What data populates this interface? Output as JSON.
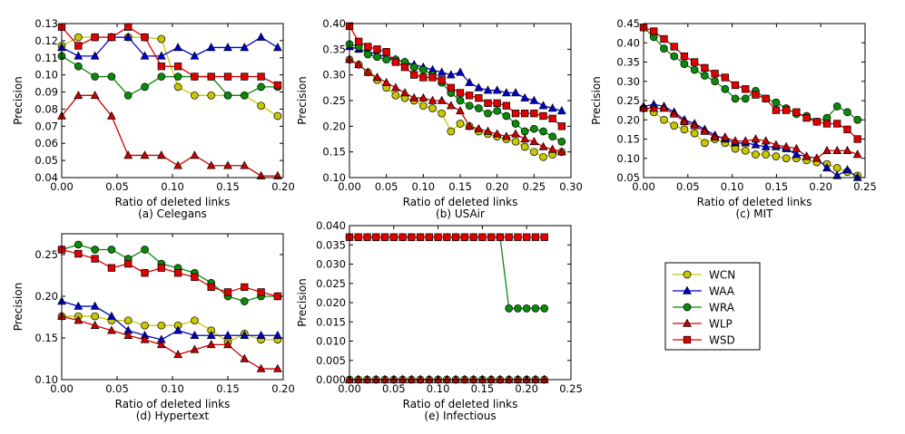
{
  "figure": {
    "legend_entries": [
      {
        "name": "WCN",
        "color": "#c8c800",
        "marker": "circle"
      },
      {
        "name": "WAA",
        "color": "#0000cc",
        "marker": "triangle"
      },
      {
        "name": "WRA",
        "color": "#0a8a0a",
        "marker": "circle"
      },
      {
        "name": "WLP",
        "color": "#cc0000",
        "marker": "triangle"
      },
      {
        "name": "WSD",
        "color": "#e00000",
        "marker": "square"
      }
    ]
  },
  "chart_data": [
    {
      "type": "line",
      "caption": "(a) Celegans",
      "xlabel": "Ratio of deleted links",
      "ylabel": "Precision",
      "xlim": [
        0,
        0.2
      ],
      "ylim": [
        0.04,
        0.13
      ],
      "xticks": [
        "0.00",
        "0.05",
        "0.10",
        "0.15",
        "0.20"
      ],
      "yticks": [
        "0.04",
        "0.05",
        "0.06",
        "0.07",
        "0.08",
        "0.09",
        "0.10",
        "0.11",
        "0.12",
        "0.13"
      ],
      "x": [
        0.0,
        0.015,
        0.03,
        0.045,
        0.06,
        0.075,
        0.09,
        0.105,
        0.12,
        0.135,
        0.15,
        0.165,
        0.18,
        0.195
      ],
      "series": [
        {
          "name": "WCN",
          "values": [
            0.117,
            0.122,
            0.122,
            0.122,
            0.122,
            0.122,
            0.121,
            0.093,
            0.088,
            0.088,
            0.088,
            0.088,
            0.082,
            0.076
          ]
        },
        {
          "name": "WAA",
          "values": [
            0.116,
            0.111,
            0.111,
            0.122,
            0.122,
            0.111,
            0.111,
            0.116,
            0.111,
            0.116,
            0.116,
            0.116,
            0.122,
            0.116
          ]
        },
        {
          "name": "WRA",
          "values": [
            0.111,
            0.105,
            0.099,
            0.099,
            0.088,
            0.093,
            0.099,
            0.099,
            0.099,
            0.099,
            0.088,
            0.088,
            0.093,
            0.093
          ]
        },
        {
          "name": "WLP",
          "values": [
            0.076,
            0.088,
            0.088,
            0.076,
            0.053,
            0.053,
            0.053,
            0.047,
            0.053,
            0.047,
            0.047,
            0.047,
            0.041,
            0.041
          ]
        },
        {
          "name": "WSD",
          "values": [
            0.128,
            0.117,
            0.122,
            0.122,
            0.128,
            0.122,
            0.105,
            0.105,
            0.099,
            0.099,
            0.099,
            0.099,
            0.099,
            0.094
          ]
        }
      ]
    },
    {
      "type": "line",
      "caption": "(b) USAir",
      "xlabel": "Ratio of deleted links",
      "ylabel": "Precision",
      "xlim": [
        0,
        0.3
      ],
      "ylim": [
        0.1,
        0.4
      ],
      "xticks": [
        "0.00",
        "0.05",
        "0.10",
        "0.15",
        "0.20",
        "0.25",
        "0.30"
      ],
      "yticks": [
        "0.10",
        "0.15",
        "0.20",
        "0.25",
        "0.30",
        "0.35",
        "0.40"
      ],
      "x": [
        0.0,
        0.0125,
        0.025,
        0.0375,
        0.05,
        0.0625,
        0.075,
        0.0875,
        0.1,
        0.1125,
        0.125,
        0.1375,
        0.15,
        0.1625,
        0.175,
        0.1875,
        0.2,
        0.2125,
        0.225,
        0.2375,
        0.25,
        0.2625,
        0.275,
        0.2875
      ],
      "series": [
        {
          "name": "WCN",
          "values": [
            0.33,
            0.32,
            0.305,
            0.29,
            0.275,
            0.26,
            0.255,
            0.25,
            0.24,
            0.235,
            0.225,
            0.19,
            0.205,
            0.2,
            0.19,
            0.185,
            0.18,
            0.175,
            0.17,
            0.16,
            0.15,
            0.14,
            0.145,
            0.15
          ]
        },
        {
          "name": "WAA",
          "values": [
            0.355,
            0.35,
            0.345,
            0.34,
            0.335,
            0.33,
            0.325,
            0.32,
            0.315,
            0.31,
            0.305,
            0.3,
            0.305,
            0.285,
            0.275,
            0.27,
            0.27,
            0.265,
            0.265,
            0.255,
            0.25,
            0.24,
            0.235,
            0.23
          ]
        },
        {
          "name": "WRA",
          "values": [
            0.36,
            0.355,
            0.34,
            0.335,
            0.33,
            0.33,
            0.325,
            0.315,
            0.31,
            0.3,
            0.285,
            0.265,
            0.25,
            0.24,
            0.235,
            0.225,
            0.23,
            0.22,
            0.205,
            0.19,
            0.195,
            0.19,
            0.18,
            0.17
          ]
        },
        {
          "name": "WLP",
          "values": [
            0.33,
            0.32,
            0.305,
            0.295,
            0.285,
            0.275,
            0.265,
            0.255,
            0.255,
            0.25,
            0.25,
            0.24,
            0.23,
            0.2,
            0.195,
            0.19,
            0.185,
            0.18,
            0.185,
            0.175,
            0.17,
            0.16,
            0.155,
            0.15
          ]
        },
        {
          "name": "WSD",
          "values": [
            0.395,
            0.365,
            0.355,
            0.35,
            0.345,
            0.325,
            0.315,
            0.3,
            0.295,
            0.295,
            0.29,
            0.275,
            0.265,
            0.26,
            0.255,
            0.245,
            0.245,
            0.24,
            0.225,
            0.225,
            0.225,
            0.22,
            0.215,
            0.2
          ]
        }
      ]
    },
    {
      "type": "line",
      "caption": "(c) MIT",
      "xlabel": "Ratio of deleted links",
      "ylabel": "Precision",
      "xlim": [
        0,
        0.25
      ],
      "ylim": [
        0.05,
        0.45
      ],
      "xticks": [
        "0.00",
        "0.05",
        "0.10",
        "0.15",
        "0.20",
        "0.25"
      ],
      "yticks": [
        "0.05",
        "0.10",
        "0.15",
        "0.20",
        "0.25",
        "0.30",
        "0.35",
        "0.40",
        "0.45"
      ],
      "x": [
        0.0,
        0.0115,
        0.023,
        0.0345,
        0.046,
        0.0575,
        0.069,
        0.0805,
        0.092,
        0.1035,
        0.115,
        0.1265,
        0.138,
        0.1495,
        0.161,
        0.1725,
        0.184,
        0.1955,
        0.207,
        0.2185,
        0.23,
        0.2415
      ],
      "series": [
        {
          "name": "WCN",
          "values": [
            0.23,
            0.22,
            0.2,
            0.185,
            0.175,
            0.165,
            0.14,
            0.15,
            0.14,
            0.125,
            0.12,
            0.11,
            0.11,
            0.105,
            0.1,
            0.1,
            0.095,
            0.09,
            0.085,
            0.075,
            0.065,
            0.055
          ]
        },
        {
          "name": "WAA",
          "values": [
            0.235,
            0.24,
            0.235,
            0.22,
            0.2,
            0.19,
            0.175,
            0.16,
            0.15,
            0.14,
            0.14,
            0.135,
            0.13,
            0.13,
            0.125,
            0.11,
            0.105,
            0.1,
            0.075,
            0.055,
            0.07,
            0.05
          ]
        },
        {
          "name": "WRA",
          "values": [
            0.44,
            0.415,
            0.385,
            0.365,
            0.345,
            0.33,
            0.315,
            0.3,
            0.28,
            0.255,
            0.255,
            0.275,
            0.255,
            0.245,
            0.23,
            0.215,
            0.21,
            0.195,
            0.205,
            0.235,
            0.22,
            0.2
          ]
        },
        {
          "name": "WLP",
          "values": [
            0.23,
            0.23,
            0.23,
            0.215,
            0.195,
            0.185,
            0.17,
            0.155,
            0.155,
            0.145,
            0.145,
            0.15,
            0.145,
            0.135,
            0.13,
            0.125,
            0.105,
            0.1,
            0.12,
            0.12,
            0.12,
            0.11
          ]
        },
        {
          "name": "WSD",
          "values": [
            0.44,
            0.43,
            0.41,
            0.39,
            0.365,
            0.35,
            0.335,
            0.32,
            0.31,
            0.29,
            0.28,
            0.265,
            0.255,
            0.225,
            0.225,
            0.22,
            0.205,
            0.195,
            0.19,
            0.19,
            0.175,
            0.15
          ]
        }
      ]
    },
    {
      "type": "line",
      "caption": "(d) Hypertext",
      "xlabel": "Ratio of deleted links",
      "ylabel": "Precision",
      "xlim": [
        0,
        0.2
      ],
      "ylim": [
        0.1,
        0.275
      ],
      "xticks": [
        "0.00",
        "0.05",
        "0.10",
        "0.15",
        "0.20"
      ],
      "yticks": [
        "0.10",
        "0.15",
        "0.20",
        "0.25"
      ],
      "x": [
        0.0,
        0.015,
        0.03,
        0.045,
        0.06,
        0.075,
        0.09,
        0.105,
        0.12,
        0.135,
        0.15,
        0.165,
        0.18,
        0.195
      ],
      "series": [
        {
          "name": "WCN",
          "values": [
            0.176,
            0.176,
            0.176,
            0.171,
            0.171,
            0.165,
            0.165,
            0.165,
            0.171,
            0.159,
            0.145,
            0.155,
            0.148,
            0.148
          ]
        },
        {
          "name": "WAA",
          "values": [
            0.194,
            0.188,
            0.188,
            0.176,
            0.159,
            0.153,
            0.148,
            0.159,
            0.153,
            0.153,
            0.153,
            0.153,
            0.153,
            0.153
          ]
        },
        {
          "name": "WRA",
          "values": [
            0.256,
            0.262,
            0.256,
            0.256,
            0.245,
            0.256,
            0.239,
            0.234,
            0.228,
            0.216,
            0.2,
            0.194,
            0.2,
            0.2
          ]
        },
        {
          "name": "WLP",
          "values": [
            0.176,
            0.171,
            0.165,
            0.159,
            0.153,
            0.148,
            0.142,
            0.13,
            0.136,
            0.142,
            0.142,
            0.125,
            0.113,
            0.113
          ]
        },
        {
          "name": "WSD",
          "values": [
            0.256,
            0.251,
            0.245,
            0.234,
            0.239,
            0.228,
            0.234,
            0.228,
            0.223,
            0.211,
            0.205,
            0.211,
            0.205,
            0.2
          ]
        }
      ]
    },
    {
      "type": "line",
      "caption": "(e) Infectious",
      "xlabel": "Ratio of deleted links",
      "ylabel": "Precision",
      "xlim": [
        0,
        0.25
      ],
      "ylim": [
        0,
        0.04
      ],
      "xticks": [
        "0.00",
        "0.05",
        "0.10",
        "0.15",
        "0.20",
        "0.25"
      ],
      "yticks": [
        "0.000",
        "0.005",
        "0.010",
        "0.015",
        "0.020",
        "0.025",
        "0.030",
        "0.035",
        "0.040"
      ],
      "x": [
        0.0,
        0.01,
        0.02,
        0.03,
        0.04,
        0.05,
        0.06,
        0.07,
        0.08,
        0.09,
        0.1,
        0.11,
        0.12,
        0.13,
        0.14,
        0.15,
        0.16,
        0.17,
        0.18,
        0.19,
        0.2,
        0.21,
        0.22
      ],
      "series": [
        {
          "name": "WCN",
          "values": [
            0,
            0,
            0,
            0,
            0,
            0,
            0,
            0,
            0,
            0,
            0,
            0,
            0,
            0,
            0,
            0,
            0,
            0,
            0,
            0,
            0,
            0,
            0
          ]
        },
        {
          "name": "WAA",
          "values": [
            0,
            0,
            0,
            0,
            0,
            0,
            0,
            0,
            0,
            0,
            0,
            0,
            0,
            0,
            0,
            0,
            0,
            0,
            0,
            0,
            0,
            0,
            0
          ]
        },
        {
          "name": "WRA",
          "values": [
            0.037,
            0.037,
            0.037,
            0.037,
            0.037,
            0.037,
            0.037,
            0.037,
            0.037,
            0.037,
            0.037,
            0.037,
            0.037,
            0.037,
            0.037,
            0.037,
            0.037,
            0.037,
            0.0185,
            0.0185,
            0.0185,
            0.0185,
            0.0185
          ]
        },
        {
          "name": "WLP",
          "values": [
            0,
            0,
            0,
            0,
            0,
            0,
            0,
            0,
            0,
            0,
            0,
            0,
            0,
            0,
            0,
            0,
            0,
            0,
            0,
            0,
            0,
            0,
            0
          ]
        },
        {
          "name": "WSD",
          "values": [
            0.037,
            0.037,
            0.037,
            0.037,
            0.037,
            0.037,
            0.037,
            0.037,
            0.037,
            0.037,
            0.037,
            0.037,
            0.037,
            0.037,
            0.037,
            0.037,
            0.037,
            0.037,
            0.037,
            0.037,
            0.037,
            0.037,
            0.037
          ]
        }
      ]
    }
  ]
}
